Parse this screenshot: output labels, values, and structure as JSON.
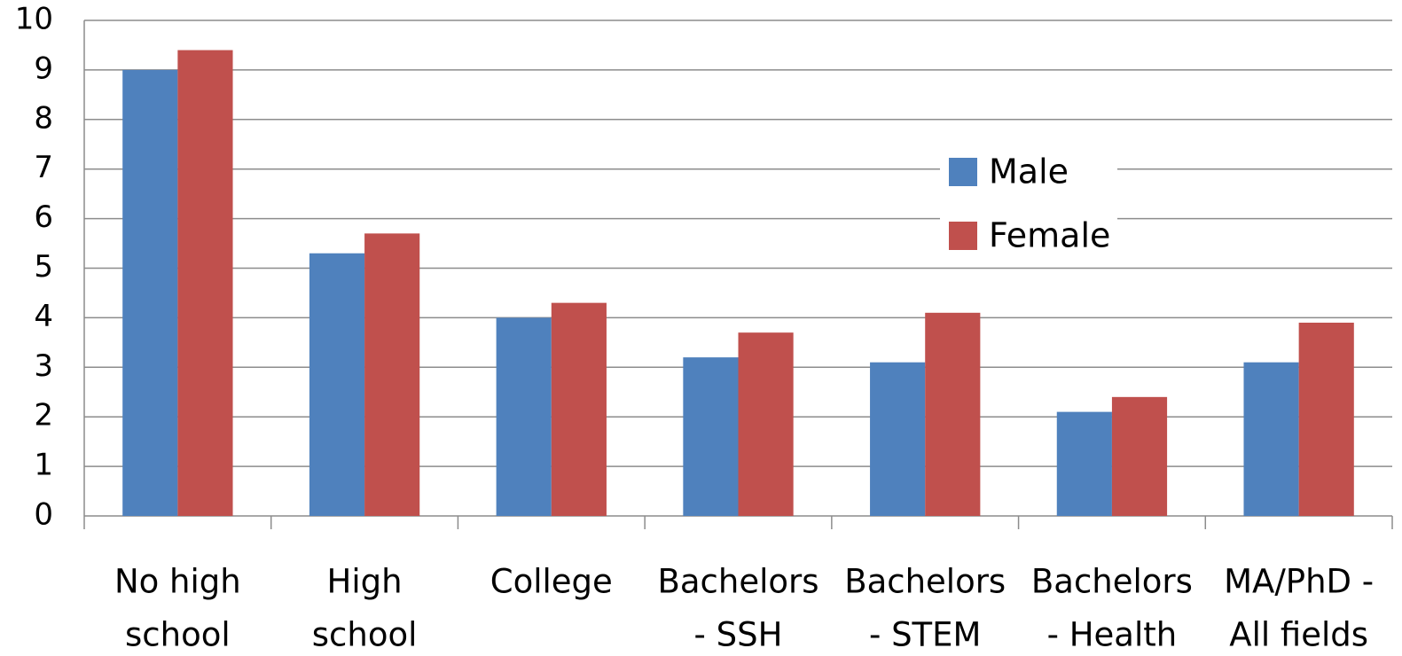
{
  "chart_data": {
    "type": "bar",
    "categories": [
      [
        "No high",
        "school"
      ],
      [
        "High",
        "school"
      ],
      [
        "College"
      ],
      [
        "Bachelors",
        "- SSH"
      ],
      [
        "Bachelors",
        "- STEM"
      ],
      [
        "Bachelors",
        "- Health"
      ],
      [
        "MA/PhD -",
        "All fields"
      ]
    ],
    "series": [
      {
        "name": "Male",
        "color": "#4f81bd",
        "values": [
          9.0,
          5.3,
          4.0,
          3.2,
          3.1,
          2.1,
          3.1
        ]
      },
      {
        "name": "Female",
        "color": "#c0504d",
        "values": [
          9.4,
          5.7,
          4.3,
          3.7,
          4.1,
          2.4,
          3.9
        ]
      }
    ],
    "ylim": [
      0,
      10
    ],
    "yticks": [
      0,
      1,
      2,
      3,
      4,
      5,
      6,
      7,
      8,
      9,
      10
    ],
    "grid": true,
    "legend": "upper right"
  }
}
